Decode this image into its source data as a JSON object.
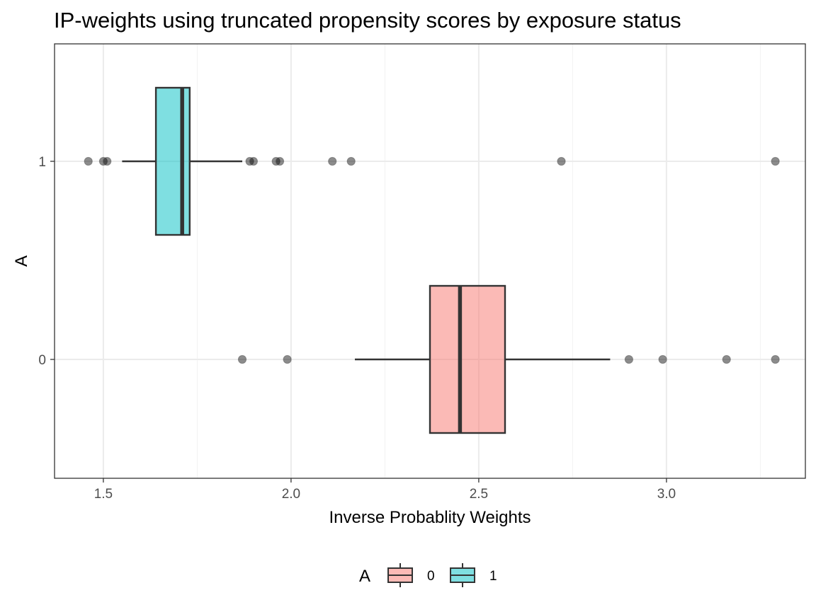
{
  "chart_data": {
    "type": "boxplot",
    "orientation": "horizontal",
    "title": "IP-weights using truncated propensity scores by exposure status",
    "xlabel": "Inverse Probablity Weights",
    "ylabel": "A",
    "xlim": [
      1.37,
      3.37
    ],
    "x_ticks": [
      {
        "value": 1.5,
        "label": "1.5"
      },
      {
        "value": 2.0,
        "label": "2.0"
      },
      {
        "value": 2.5,
        "label": "2.5"
      },
      {
        "value": 3.0,
        "label": "3.0"
      }
    ],
    "y_categories": [
      "0",
      "1"
    ],
    "grid": true,
    "legend": {
      "title": "A",
      "position": "bottom"
    },
    "series": [
      {
        "name": "0",
        "color": "#F8766D",
        "whisker_low": 2.17,
        "q1": 2.37,
        "median": 2.45,
        "q3": 2.57,
        "whisker_high": 2.85,
        "outliers": [
          1.87,
          1.99,
          2.9,
          2.99,
          3.16,
          3.29
        ]
      },
      {
        "name": "1",
        "color": "#00BFC4",
        "whisker_low": 1.55,
        "q1": 1.64,
        "median": 1.71,
        "q3": 1.73,
        "whisker_high": 1.87,
        "outliers": [
          1.46,
          1.5,
          1.51,
          1.89,
          1.9,
          1.96,
          1.97,
          2.11,
          2.16,
          2.72,
          3.29
        ]
      }
    ]
  }
}
